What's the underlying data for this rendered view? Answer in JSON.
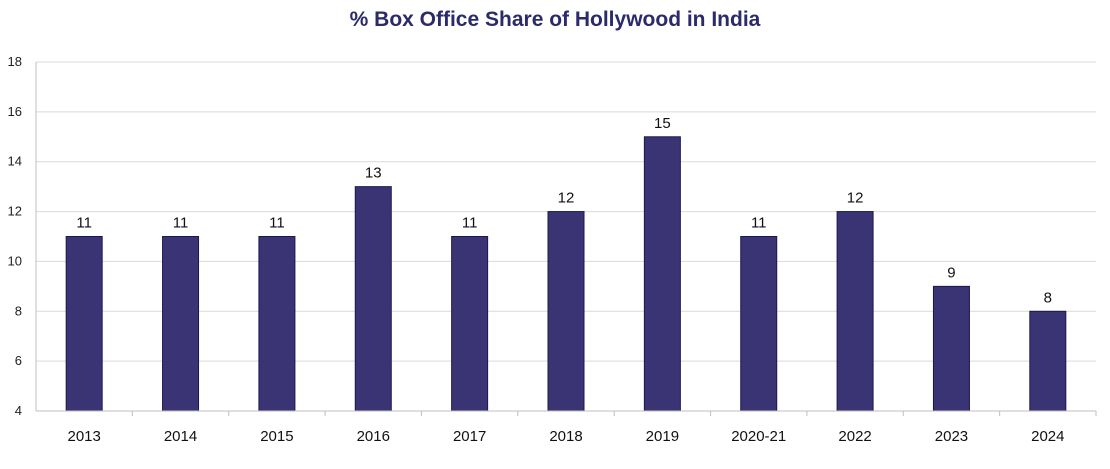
{
  "chart_data": {
    "type": "bar",
    "title": "% Box Office Share of Hollywood in India",
    "categories": [
      "2013",
      "2014",
      "2015",
      "2016",
      "2017",
      "2018",
      "2019",
      "2020-21",
      "2022",
      "2023",
      "2024"
    ],
    "values": [
      11,
      11,
      11,
      13,
      11,
      12,
      15,
      11,
      12,
      9,
      8
    ],
    "xlabel": "",
    "ylabel": "",
    "ylim": [
      4,
      18
    ],
    "yticks": [
      4,
      6,
      8,
      10,
      12,
      14,
      16,
      18
    ],
    "grid": true,
    "legend": "none",
    "bar_color": "#3a3474",
    "bar_border_color": "#1a1850",
    "title_color": "#2b2a6b",
    "grid_color": "#d9d9d9"
  }
}
